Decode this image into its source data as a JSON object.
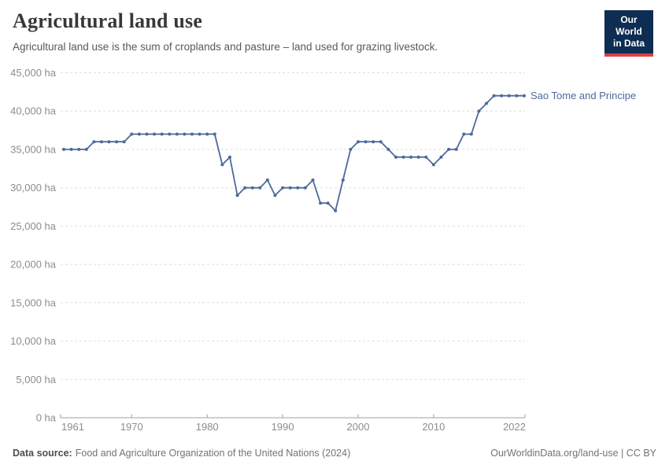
{
  "header": {
    "title": "Agricultural land use",
    "subtitle": "Agricultural land use is the sum of croplands and pasture – land used for grazing livestock."
  },
  "logo": {
    "line1": "Our World",
    "line2": "in Data",
    "bg_color": "#0E2D52",
    "bar_color": "#DC3F44"
  },
  "chart_data": {
    "type": "line",
    "title": "Agricultural land use",
    "unit": "ha",
    "xlim": [
      1961,
      2022
    ],
    "ylim": [
      0,
      45000
    ],
    "y_ticks": [
      0,
      5000,
      10000,
      15000,
      20000,
      25000,
      30000,
      35000,
      40000,
      45000
    ],
    "y_tick_suffix": " ha",
    "x_ticks": [
      1961,
      1970,
      1980,
      1990,
      2000,
      2010,
      2022
    ],
    "grid": true,
    "legend_position": "end-of-line",
    "series": [
      {
        "name": "Sao Tome and Principe",
        "color": "#4C6A9C",
        "x": [
          1961,
          1962,
          1963,
          1964,
          1965,
          1966,
          1967,
          1968,
          1969,
          1970,
          1971,
          1972,
          1973,
          1974,
          1975,
          1976,
          1977,
          1978,
          1979,
          1980,
          1981,
          1982,
          1983,
          1984,
          1985,
          1986,
          1987,
          1988,
          1989,
          1990,
          1991,
          1992,
          1993,
          1994,
          1995,
          1996,
          1997,
          1998,
          1999,
          2000,
          2001,
          2002,
          2003,
          2004,
          2005,
          2006,
          2007,
          2008,
          2009,
          2010,
          2011,
          2012,
          2013,
          2014,
          2015,
          2016,
          2017,
          2018,
          2019,
          2020,
          2021,
          2022
        ],
        "values": [
          35000,
          35000,
          35000,
          35000,
          36000,
          36000,
          36000,
          36000,
          36000,
          37000,
          37000,
          37000,
          37000,
          37000,
          37000,
          37000,
          37000,
          37000,
          37000,
          37000,
          37000,
          33000,
          34000,
          29000,
          30000,
          30000,
          30000,
          31000,
          29000,
          30000,
          30000,
          30000,
          30000,
          31000,
          28000,
          28000,
          27000,
          31000,
          35000,
          36000,
          36000,
          36000,
          36000,
          35000,
          34000,
          34000,
          34000,
          34000,
          34000,
          33000,
          34000,
          35000,
          35000,
          37000,
          37000,
          40000,
          41000,
          42000,
          42000,
          42000,
          42000,
          42000
        ]
      }
    ],
    "colors": {
      "line": "#4C6A9C",
      "grid": "#dedede",
      "axis": "#a1a1a1",
      "tick_label": "#8c8c8c"
    }
  },
  "footer": {
    "source_label": "Data source:",
    "source_text": "Food and Agriculture Organization of the United Nations (2024)",
    "url_text": "OurWorldinData.org/land-use",
    "separator": " | ",
    "license": "CC BY"
  }
}
